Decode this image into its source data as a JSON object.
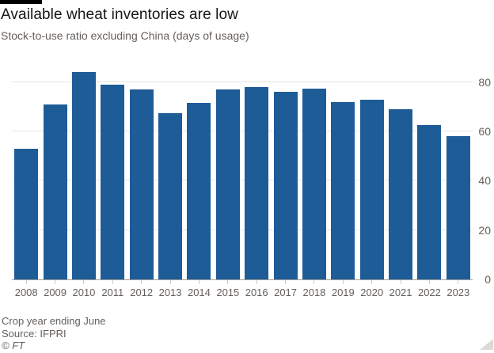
{
  "header": {
    "title": "Available wheat inventories are low",
    "subtitle": "Stock-to-use ratio excluding China (days of usage)"
  },
  "chart_data": {
    "type": "bar",
    "title": "Available wheat inventories are low",
    "subtitle": "Stock-to-use ratio excluding China (days of usage)",
    "categories": [
      "2008",
      "2009",
      "2010",
      "2011",
      "2012",
      "2013",
      "2014",
      "2015",
      "2016",
      "2017",
      "2018",
      "2019",
      "2020",
      "2021",
      "2022",
      "2023"
    ],
    "values": [
      53,
      71,
      84,
      79,
      77,
      67.5,
      71.5,
      77,
      78,
      76,
      77.5,
      72,
      73,
      69,
      62.5,
      58
    ],
    "unit": "days of usage",
    "xlabel": "",
    "ylabel": "",
    "ylim": [
      0,
      86
    ],
    "yticks": [
      0,
      20,
      40,
      60,
      80
    ],
    "y_axis_side": "right",
    "grid": true,
    "legend_position": "none",
    "bar_color": "#1e5c97"
  },
  "footer": {
    "note": "Crop year ending June",
    "source": "Source: IFPRI",
    "copyright": "© FT"
  },
  "colors": {
    "bar": "#1e5c97",
    "text_primary": "#181614",
    "text_secondary": "#66605c",
    "gridline": "#e8e5e1",
    "axis_line": "#a5a19b",
    "accent_bar": "#000000",
    "background": "#ffffff"
  }
}
